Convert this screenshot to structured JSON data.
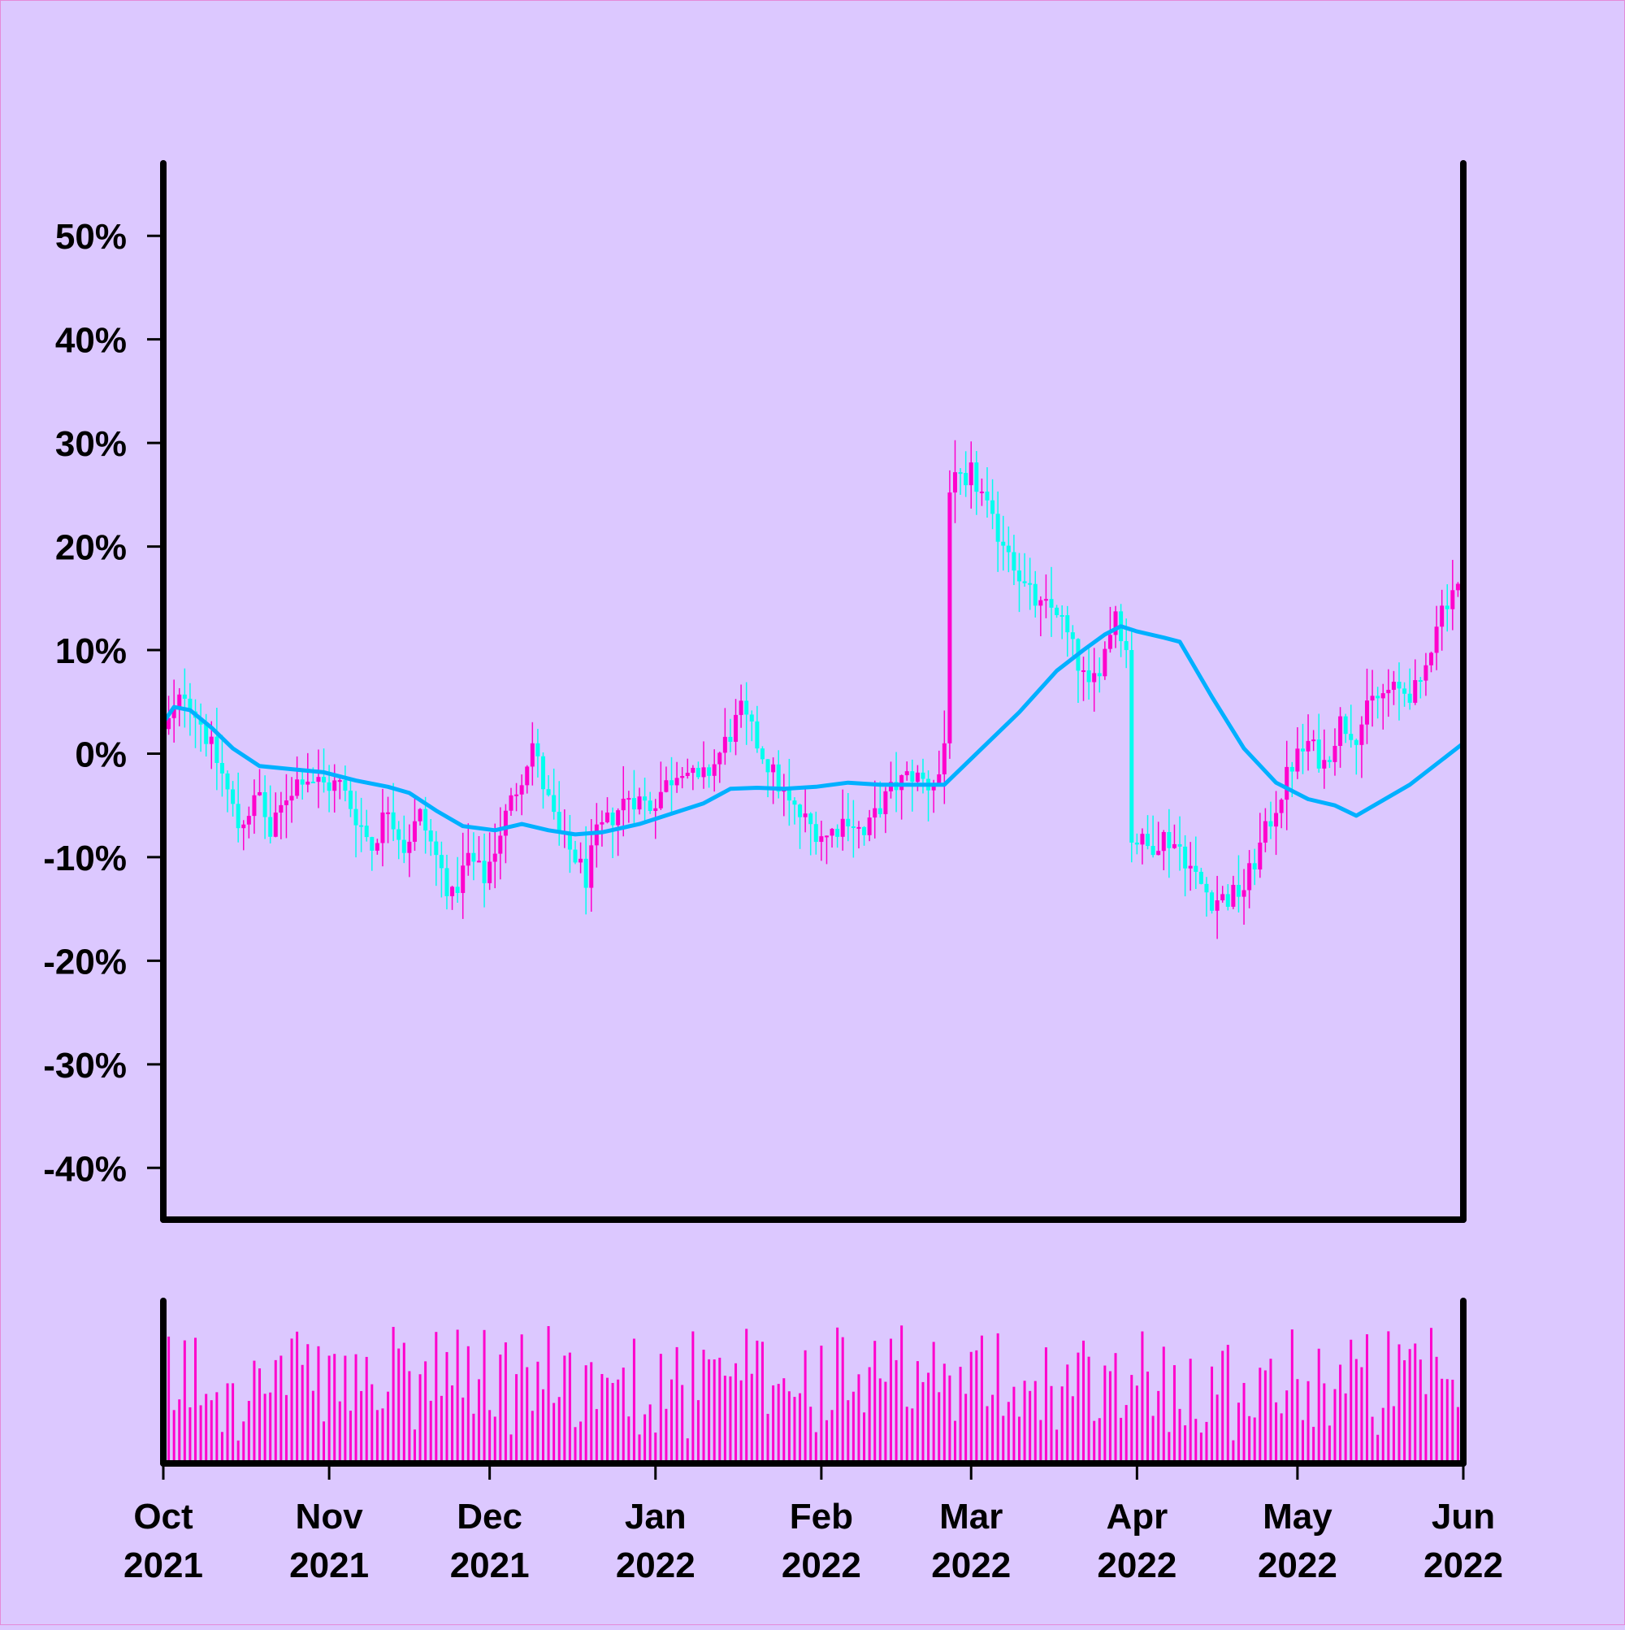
{
  "chart_data": {
    "type": "candlestick",
    "y_unit": "percent change",
    "ylim": [
      -45,
      57
    ],
    "y_ticks": [
      {
        "value": 50,
        "label": "50%"
      },
      {
        "value": 40,
        "label": "40%"
      },
      {
        "value": 30,
        "label": "30%"
      },
      {
        "value": 20,
        "label": "20%"
      },
      {
        "value": 10,
        "label": "10%"
      },
      {
        "value": 0,
        "label": "0%"
      },
      {
        "value": -10,
        "label": "-10%"
      },
      {
        "value": -20,
        "label": "-20%"
      },
      {
        "value": -30,
        "label": "-30%"
      },
      {
        "value": -40,
        "label": "-40%"
      }
    ],
    "x_range": [
      "2021-10-01",
      "2022-06-01"
    ],
    "x_ticks": [
      {
        "date": "2021-10-01",
        "month": "Oct",
        "year": "2021"
      },
      {
        "date": "2021-11-01",
        "month": "Nov",
        "year": "2021"
      },
      {
        "date": "2021-12-01",
        "month": "Dec",
        "year": "2021"
      },
      {
        "date": "2022-01-01",
        "month": "Jan",
        "year": "2022"
      },
      {
        "date": "2022-02-01",
        "month": "Feb",
        "year": "2022"
      },
      {
        "date": "2022-03-01",
        "month": "Mar",
        "year": "2022"
      },
      {
        "date": "2022-04-01",
        "month": "Apr",
        "year": "2022"
      },
      {
        "date": "2022-05-01",
        "month": "May",
        "year": "2022"
      },
      {
        "date": "2022-06-01",
        "month": "Jun",
        "year": "2022"
      }
    ],
    "close_path": [
      [
        "2021-10-01",
        2
      ],
      [
        "2021-10-05",
        6
      ],
      [
        "2021-10-08",
        3
      ],
      [
        "2021-10-12",
        -2
      ],
      [
        "2021-10-15",
        -7
      ],
      [
        "2021-10-19",
        -4
      ],
      [
        "2021-10-21",
        -8
      ],
      [
        "2021-10-24",
        -4
      ],
      [
        "2021-10-27",
        -2
      ],
      [
        "2021-10-31",
        -3
      ],
      [
        "2021-11-03",
        -3
      ],
      [
        "2021-11-06",
        -6
      ],
      [
        "2021-11-09",
        -9
      ],
      [
        "2021-11-12",
        -5
      ],
      [
        "2021-11-15",
        -9
      ],
      [
        "2021-11-18",
        -6
      ],
      [
        "2021-11-21",
        -10
      ],
      [
        "2021-11-24",
        -14
      ],
      [
        "2021-11-27",
        -10
      ],
      [
        "2021-11-30",
        -12
      ],
      [
        "2021-12-02",
        -9
      ],
      [
        "2021-12-04",
        -6
      ],
      [
        "2021-12-07",
        -2
      ],
      [
        "2021-12-09",
        1
      ],
      [
        "2021-12-11",
        -3
      ],
      [
        "2021-12-14",
        -8
      ],
      [
        "2021-12-17",
        -10
      ],
      [
        "2021-12-19",
        -12
      ],
      [
        "2021-12-21",
        -8
      ],
      [
        "2021-12-24",
        -6
      ],
      [
        "2021-12-27",
        -4
      ],
      [
        "2021-12-31",
        -5
      ],
      [
        "2022-01-03",
        -3
      ],
      [
        "2022-01-06",
        -1
      ],
      [
        "2022-01-09",
        -3
      ],
      [
        "2022-01-12",
        -1
      ],
      [
        "2022-01-15",
        2
      ],
      [
        "2022-01-17",
        4
      ],
      [
        "2022-01-20",
        1
      ],
      [
        "2022-01-23",
        -2
      ],
      [
        "2022-01-26",
        -5
      ],
      [
        "2022-01-30",
        -7
      ],
      [
        "2022-02-02",
        -8
      ],
      [
        "2022-02-06",
        -6
      ],
      [
        "2022-02-09",
        -8
      ],
      [
        "2022-02-12",
        -5
      ],
      [
        "2022-02-15",
        -3
      ],
      [
        "2022-02-18",
        -2
      ],
      [
        "2022-02-21",
        -3
      ],
      [
        "2022-02-23",
        -2
      ],
      [
        "2022-02-24",
        1
      ],
      [
        "2022-02-25",
        26
      ],
      [
        "2022-02-27",
        26
      ],
      [
        "2022-02-28",
        25
      ],
      [
        "2022-03-01",
        27
      ],
      [
        "2022-03-03",
        25
      ],
      [
        "2022-03-05",
        22
      ],
      [
        "2022-03-08",
        20
      ],
      [
        "2022-03-11",
        16
      ],
      [
        "2022-03-14",
        14
      ],
      [
        "2022-03-17",
        14
      ],
      [
        "2022-03-20",
        10
      ],
      [
        "2022-03-23",
        6
      ],
      [
        "2022-03-26",
        10
      ],
      [
        "2022-03-28",
        14
      ],
      [
        "2022-03-30",
        10
      ],
      [
        "2022-03-31",
        -8
      ],
      [
        "2022-04-03",
        -9
      ],
      [
        "2022-04-06",
        -8
      ],
      [
        "2022-04-09",
        -9
      ],
      [
        "2022-04-12",
        -12
      ],
      [
        "2022-04-15",
        -14
      ],
      [
        "2022-04-18",
        -14
      ],
      [
        "2022-04-21",
        -13
      ],
      [
        "2022-04-24",
        -9
      ],
      [
        "2022-04-27",
        -5
      ],
      [
        "2022-04-30",
        -1
      ],
      [
        "2022-05-03",
        1
      ],
      [
        "2022-05-06",
        -1
      ],
      [
        "2022-05-09",
        3
      ],
      [
        "2022-05-12",
        2
      ],
      [
        "2022-05-15",
        5
      ],
      [
        "2022-05-18",
        6
      ],
      [
        "2022-05-21",
        6
      ],
      [
        "2022-05-24",
        6
      ],
      [
        "2022-05-27",
        13
      ],
      [
        "2022-05-30",
        16
      ],
      [
        "2022-06-01",
        16
      ]
    ],
    "moving_average": [
      [
        "2021-10-01",
        3
      ],
      [
        "2021-10-03",
        4.5
      ],
      [
        "2021-10-06",
        4.2
      ],
      [
        "2021-10-10",
        2.5
      ],
      [
        "2021-10-14",
        0.5
      ],
      [
        "2021-10-19",
        -1.2
      ],
      [
        "2021-10-25",
        -1.5
      ],
      [
        "2021-10-31",
        -1.8
      ],
      [
        "2021-11-06",
        -2.6
      ],
      [
        "2021-11-12",
        -3.2
      ],
      [
        "2021-11-16",
        -3.8
      ],
      [
        "2021-11-21",
        -5.5
      ],
      [
        "2021-11-26",
        -7.0
      ],
      [
        "2021-12-02",
        -7.4
      ],
      [
        "2021-12-07",
        -6.8
      ],
      [
        "2021-12-12",
        -7.4
      ],
      [
        "2021-12-17",
        -7.8
      ],
      [
        "2021-12-22",
        -7.6
      ],
      [
        "2021-12-29",
        -6.8
      ],
      [
        "2022-01-04",
        -5.8
      ],
      [
        "2022-01-10",
        -4.8
      ],
      [
        "2022-01-15",
        -3.4
      ],
      [
        "2022-01-20",
        -3.3
      ],
      [
        "2022-01-25",
        -3.4
      ],
      [
        "2022-01-31",
        -3.2
      ],
      [
        "2022-02-06",
        -2.8
      ],
      [
        "2022-02-12",
        -3.0
      ],
      [
        "2022-02-18",
        -3.0
      ],
      [
        "2022-02-24",
        -3.0
      ],
      [
        "2022-03-03",
        0.5
      ],
      [
        "2022-03-10",
        4.0
      ],
      [
        "2022-03-17",
        8.0
      ],
      [
        "2022-03-22",
        10.0
      ],
      [
        "2022-03-26",
        11.5
      ],
      [
        "2022-03-29",
        12.3
      ],
      [
        "2022-04-01",
        11.8
      ],
      [
        "2022-04-06",
        11.2
      ],
      [
        "2022-04-09",
        10.8
      ],
      [
        "2022-04-15",
        5.5
      ],
      [
        "2022-04-21",
        0.5
      ],
      [
        "2022-04-27",
        -2.8
      ],
      [
        "2022-05-03",
        -4.4
      ],
      [
        "2022-05-08",
        -5.0
      ],
      [
        "2022-05-12",
        -6.0
      ],
      [
        "2022-05-17",
        -4.5
      ],
      [
        "2022-05-22",
        -3.0
      ],
      [
        "2022-05-27",
        -1.0
      ],
      [
        "2022-06-01",
        1.0
      ]
    ],
    "volume_range": [
      0,
      100
    ],
    "colors": {
      "background": "#dcc8ff",
      "up": "#ff00cc",
      "down": "#00ffee",
      "moving_average": "#00b0ff",
      "volume": "#ff00cc",
      "axis": "#000000"
    }
  }
}
